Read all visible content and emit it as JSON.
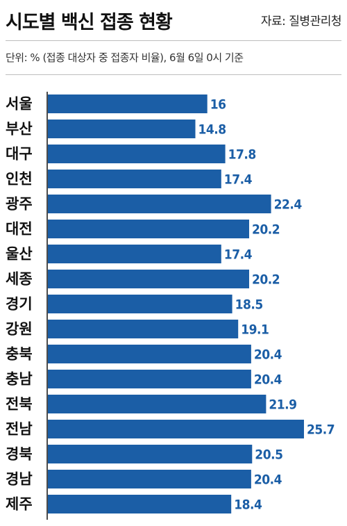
{
  "header": {
    "title": "시도별 백신 접종 현황",
    "source": "자료: 질병관리청",
    "unit_note": "단위: % (접종 대상자 중 접종자 비율), 6월 6일 0시 기준"
  },
  "colors": {
    "bar": "#1b5ea6",
    "value_label": "#1b5ea6",
    "text": "#111111"
  },
  "chart_data": {
    "type": "bar",
    "orientation": "horizontal",
    "title": "시도별 백신 접종 현황",
    "categories": [
      "서울",
      "부산",
      "대구",
      "인천",
      "광주",
      "대전",
      "울산",
      "세종",
      "경기",
      "강원",
      "충북",
      "충남",
      "전북",
      "전남",
      "경북",
      "경남",
      "제주"
    ],
    "values": [
      16,
      14.8,
      17.8,
      17.4,
      22.4,
      20.2,
      17.4,
      20.2,
      18.5,
      19.1,
      20.4,
      20.4,
      21.9,
      25.7,
      20.5,
      20.4,
      18.4
    ],
    "value_labels": [
      "16",
      "14.8",
      "17.8",
      "17.4",
      "22.4",
      "20.2",
      "17.4",
      "20.2",
      "18.5",
      "19.1",
      "20.4",
      "20.4",
      "21.9",
      "25.7",
      "20.5",
      "20.4",
      "18.4"
    ],
    "xlim": [
      0,
      25.7
    ],
    "grid": false,
    "legend": "none"
  }
}
